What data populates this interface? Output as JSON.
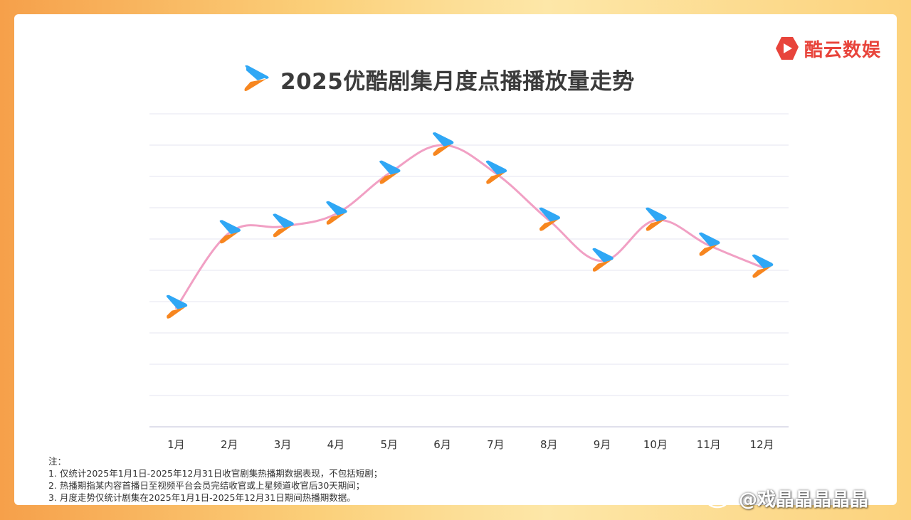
{
  "brand": {
    "name": "酷云数娱",
    "color": "#e8443b"
  },
  "chart_data": {
    "type": "line",
    "title": "2025优酷剧集月度点播播放量走势",
    "categories": [
      "1月",
      "2月",
      "3月",
      "4月",
      "5月",
      "6月",
      "7月",
      "8月",
      "9月",
      "10月",
      "11月",
      "12月"
    ],
    "values": [
      38,
      62,
      64,
      68,
      81,
      90,
      81,
      66,
      53,
      66,
      58,
      51
    ],
    "ylim": [
      0,
      100
    ],
    "yticks_labeled": false,
    "grid": true,
    "line_color": "#f1a0c4",
    "marker": "youku-logo-icon",
    "marker_colors": {
      "top": "#2fa7f5",
      "bottom": "#f7861f"
    }
  },
  "notes": [
    "注：",
    "1. 仅统计2025年1月1日-2025年12月31日收官剧集热播期数据表现，不包括短剧；",
    "2. 热播期指某内容首播日至视频平台会员完结收官或上星频道收官后30天期间；",
    "3. 月度走势仅统计剧集在2025年1月1日-2025年12月31日期间热播期数据。"
  ],
  "watermark": {
    "text": "@戏晶晶晶晶晶"
  }
}
